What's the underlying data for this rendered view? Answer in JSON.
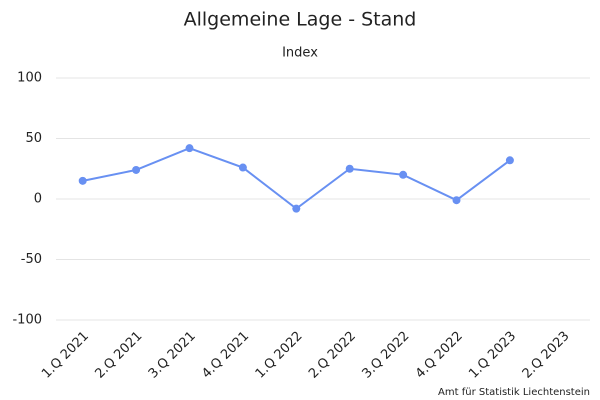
{
  "chart_data": {
    "type": "line",
    "title": "Allgemeine Lage - Stand",
    "subtitle": "Index",
    "categories": [
      "1.Q 2021",
      "2.Q 2021",
      "3.Q 2021",
      "4.Q 2021",
      "1.Q 2022",
      "2.Q 2022",
      "3.Q 2022",
      "4.Q 2022",
      "1.Q 2023",
      "2.Q 2023"
    ],
    "values": [
      15,
      24,
      42,
      26,
      -8,
      25,
      20,
      -1,
      32,
      null
    ],
    "color": "#6890f2",
    "ylim": [
      -100,
      100
    ],
    "yticks": [
      -100,
      -50,
      0,
      50,
      100
    ],
    "grid": true,
    "source": "Amt für Statistik Liechtenstein"
  }
}
